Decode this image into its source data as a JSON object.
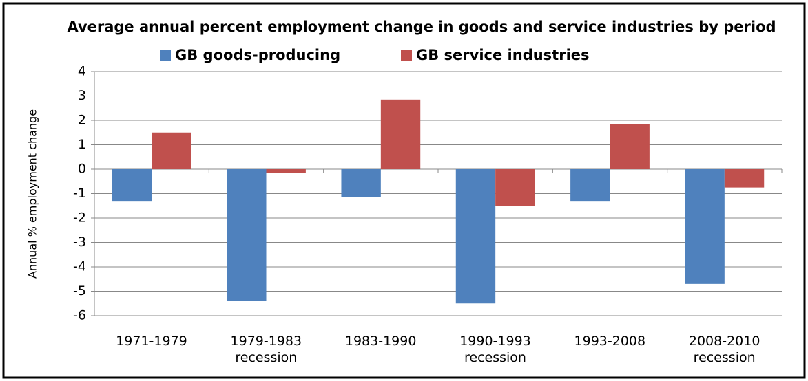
{
  "chart_data": {
    "type": "bar",
    "title": "Average annual percent employment change in goods and service industries by period",
    "y_label": "Annual % employment change",
    "categories": [
      "1971-1979",
      "1979-1983\nrecession",
      "1983-1990",
      "1990-1993\nrecession",
      "1993-2008",
      "2008-2010\nrecession"
    ],
    "series": [
      {
        "name": "GB goods-producing",
        "color": "#4f81bd",
        "values": [
          -1.3,
          -5.4,
          -1.15,
          -5.5,
          -1.3,
          -4.7
        ]
      },
      {
        "name": "GB service industries",
        "color": "#c0504d",
        "values": [
          1.5,
          -0.15,
          2.85,
          -1.5,
          1.85,
          -0.75
        ]
      }
    ],
    "ylim": [
      -6,
      4
    ],
    "yticks": [
      -6,
      -5,
      -4,
      -3,
      -2,
      -1,
      0,
      1,
      2,
      3,
      4
    ],
    "grid": true
  }
}
